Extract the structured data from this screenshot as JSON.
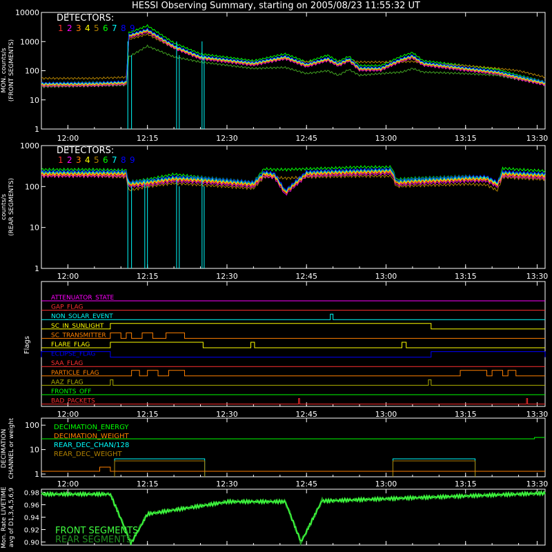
{
  "chart_data": {
    "title": "HESSI Observing Summary, starting on 2005/08/23 11:55:32 UT",
    "x_tick_labels": [
      "12:00",
      "12:15",
      "12:30",
      "12:45",
      "13:00",
      "13:15",
      "13:30"
    ],
    "colors": {
      "background": "#000000",
      "axis": "#ffffff",
      "det1": "#ff3030",
      "det2": "#ff00ff",
      "det3": "#ff8000",
      "det4": "#ffff00",
      "det5": "#b08000",
      "det6": "#00ff00",
      "det7": "#00ffff",
      "det8": "#0000ff",
      "det9": "#40a020"
    },
    "panels": [
      {
        "id": "front",
        "type": "line",
        "scale": "log",
        "ylabel": "MON. counts/s",
        "ylabel2": "(FRONT SEGMENTS)",
        "y_tick_labels": [
          "1",
          "10",
          "100",
          "1000",
          "10000"
        ],
        "legend_title": "DETECTORS:",
        "legend": [
          "1",
          "2",
          "3",
          "4",
          "5",
          "6",
          "7",
          "8",
          "9"
        ],
        "series_times": [
          0,
          10,
          16,
          16.5,
          20,
          25,
          30,
          40,
          46,
          50,
          54,
          56,
          58,
          60,
          64,
          68,
          70,
          72,
          80,
          86,
          90,
          95
        ],
        "series_approx": [
          {
            "name": "1",
            "values": [
              35,
              36,
              40,
              1600,
              2500,
              700,
              300,
              180,
              300,
              160,
              260,
              170,
              250,
              120,
              120,
              250,
              320,
              180,
              120,
              90,
              60,
              38
            ]
          },
          {
            "name": "6",
            "values": [
              38,
              40,
              42,
              2000,
              3500,
              900,
              380,
              220,
              380,
              200,
              340,
              210,
              310,
              150,
              150,
              320,
              420,
              220,
              150,
              110,
              70,
              42
            ]
          },
          {
            "name": "9",
            "values": [
              28,
              30,
              32,
              300,
              700,
              300,
              200,
              120,
              130,
              80,
              100,
              70,
              110,
              70,
              80,
              90,
              120,
              90,
              80,
              70,
              50,
              35
            ]
          },
          {
            "name": "5",
            "values": [
              55,
              55,
              60,
              1200,
              1800,
              600,
              280,
              200,
              250,
              200,
              230,
              200,
              220,
              200,
              200,
              200,
              210,
              180,
              150,
              120,
              100,
              60
            ]
          }
        ]
      },
      {
        "id": "rear",
        "type": "line",
        "scale": "log",
        "ylabel": "counts/s",
        "ylabel2": "(REAR SEGMENTS)",
        "y_tick_labels": [
          "1",
          "10",
          "100",
          "1000"
        ],
        "legend_title": "DETECTORS:",
        "legend": [
          "1",
          "2",
          "3",
          "4",
          "5",
          "6",
          "7",
          "8",
          "9"
        ],
        "series_times": [
          0,
          10,
          16,
          16.5,
          20,
          25,
          30,
          40,
          42,
          44,
          46,
          50,
          54,
          60,
          66,
          67,
          70,
          76,
          80,
          84,
          86,
          87,
          90,
          95
        ],
        "series_approx": [
          {
            "name": "1",
            "values": [
              200,
              200,
              200,
              110,
              120,
              150,
              140,
              110,
              200,
              180,
              70,
              200,
              210,
              220,
              230,
              120,
              130,
              140,
              150,
              150,
              110,
              200,
              190,
              180
            ]
          },
          {
            "name": "6",
            "values": [
              260,
              260,
              250,
              130,
              150,
              200,
              170,
              130,
              270,
              260,
              260,
              270,
              280,
              300,
              300,
              150,
              160,
              170,
              180,
              170,
              120,
              280,
              260,
              240
            ]
          },
          {
            "name": "5",
            "values": [
              180,
              180,
              170,
              80,
              100,
              120,
              110,
              90,
              170,
              170,
              160,
              170,
              175,
              180,
              180,
              100,
              105,
              110,
              115,
              110,
              80,
              170,
              160,
              150
            ]
          }
        ]
      },
      {
        "id": "flags",
        "ylabel": "Flags",
        "rows": [
          {
            "label": "ATTENUATOR_STATE",
            "color": "#ff00ff",
            "high": []
          },
          {
            "label": "GAP_FLAG",
            "color": "#ff3030",
            "high": []
          },
          {
            "label": "NON_SOLAR_EVENT",
            "color": "#00ffff",
            "high": [
              [
                54.5,
                55.0
              ]
            ]
          },
          {
            "label": "SC_IN_SUNLIGHT",
            "color": "#ffff00",
            "high": [
              [
                13,
                73.5
              ]
            ]
          },
          {
            "label": "SC_TRANSMITTER",
            "color": "#ff8000",
            "high": [
              [
                13,
                15
              ],
              [
                16,
                17
              ],
              [
                19,
                21
              ],
              [
                23.5,
                27
              ]
            ]
          },
          {
            "label": "FLARE_FLAG",
            "color": "#ffff00",
            "high": [
              [
                13,
                30.5
              ],
              [
                39.5,
                40.2
              ],
              [
                68,
                68.8
              ]
            ]
          },
          {
            "label": "ECLIPSE_FLAG",
            "color": "#0000ff",
            "high": [
              [
                0,
                13
              ],
              [
                73.5,
                95
              ]
            ]
          },
          {
            "label": "SAA_FLAG",
            "color": "#ff3030",
            "high": []
          },
          {
            "label": "PARTICLE_FLAG",
            "color": "#ff8000",
            "high": [
              [
                17,
                18.5
              ],
              [
                20,
                22
              ],
              [
                24,
                27
              ],
              [
                79,
                84
              ],
              [
                85,
                87
              ],
              [
                88,
                89.5
              ]
            ]
          },
          {
            "label": "AAZ_FLAG",
            "color": "#b0b000",
            "high": [
              [
                13,
                13.5
              ],
              [
                73,
                73.5
              ]
            ]
          },
          {
            "label": "FRONTS_OFF",
            "color": "#00ff00",
            "high": []
          },
          {
            "label": "BAD_PACKETS",
            "color": "#ff3030",
            "high": [
              [
                48.5,
                48.7
              ],
              [
                91.5,
                91.7
              ]
            ]
          }
        ]
      },
      {
        "id": "decimation",
        "type": "line",
        "scale": "log",
        "ylabel": "DECIMATION",
        "ylabel2": "CHANNEL or weight",
        "y_tick_labels": [
          "1",
          "10",
          "100"
        ],
        "legend": [
          {
            "name": "DECIMATION_ENERGY",
            "color": "#00ff00"
          },
          {
            "name": "DECIMATION_WEIGHT",
            "color": "#ff8000"
          },
          {
            "name": "REAR_DEC_CHAN/128",
            "color": "#00ffff"
          },
          {
            "name": "REAR_DEC_WEIGHT",
            "color": "#b08000"
          }
        ]
      },
      {
        "id": "livetime",
        "type": "line",
        "ylabel": "Mon. Rate LIVETIME",
        "ylabel2": "avg of D1,3,4,5,6,9",
        "y_tick_labels": [
          "0.90",
          "0.92",
          "0.94",
          "0.96",
          "0.98"
        ],
        "ylim": [
          0.895,
          0.985
        ],
        "legend": [
          {
            "name": "FRONT SEGMENTS",
            "color": "#40ff40"
          },
          {
            "name": "REAR SEGMENTS",
            "color": "#20a020"
          }
        ]
      }
    ]
  }
}
